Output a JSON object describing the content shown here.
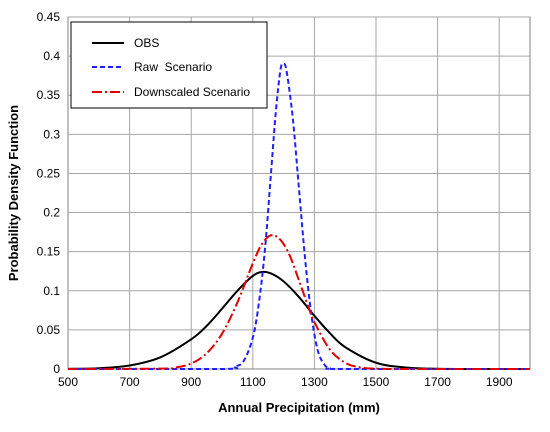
{
  "chart_data": {
    "type": "line",
    "xlabel": "Annual Precipitation (mm)",
    "ylabel": "Probability Density Function",
    "xlim": [
      500,
      2000
    ],
    "ylim": [
      0,
      0.45
    ],
    "x_ticks": [
      500,
      700,
      900,
      1100,
      1300,
      1500,
      1700,
      1900
    ],
    "y_ticks": [
      0,
      0.05,
      0.1,
      0.15,
      0.2,
      0.25,
      0.3,
      0.35,
      0.4,
      0.45
    ],
    "x_tick_labels": [
      "500",
      "700",
      "900",
      "1100",
      "1300",
      "1500",
      "1700",
      "1900"
    ],
    "y_tick_labels": [
      "0",
      "0.05",
      "0.1",
      "0.15",
      "0.2",
      "0.25",
      "0.3",
      "0.35",
      "0.4",
      "0.45"
    ],
    "grid": true,
    "legend_position": "top-left",
    "series": [
      {
        "name": "OBS",
        "color": "#000000",
        "dash": "solid",
        "x": [
          500,
          600,
          700,
          800,
          900,
          950,
          1000,
          1050,
          1100,
          1130,
          1160,
          1200,
          1250,
          1300,
          1350,
          1400,
          1500,
          1600,
          1700,
          1800,
          1900,
          2000
        ],
        "y": [
          0.0002,
          0.001,
          0.0045,
          0.015,
          0.038,
          0.055,
          0.077,
          0.1,
          0.119,
          0.124,
          0.122,
          0.112,
          0.092,
          0.068,
          0.046,
          0.028,
          0.008,
          0.0018,
          0.0003,
          0.0,
          0.0,
          0.0
        ]
      },
      {
        "name": "Raw  Scenario",
        "color": "#1f1fff",
        "dash": "dashed",
        "x": [
          500,
          1000,
          1040,
          1070,
          1100,
          1120,
          1140,
          1160,
          1175,
          1190,
          1200,
          1210,
          1230,
          1250,
          1270,
          1290,
          1310,
          1330,
          1350,
          1400,
          2000
        ],
        "y": [
          0.0,
          0.0,
          0.003,
          0.01,
          0.04,
          0.085,
          0.155,
          0.255,
          0.33,
          0.383,
          0.39,
          0.38,
          0.32,
          0.23,
          0.14,
          0.07,
          0.025,
          0.007,
          0.001,
          0.0,
          0.0
        ]
      },
      {
        "name": "Downscaled Scenario",
        "color": "#e00000",
        "dash": "dashdot",
        "x": [
          500,
          800,
          850,
          900,
          950,
          1000,
          1050,
          1100,
          1130,
          1160,
          1190,
          1220,
          1250,
          1280,
          1300,
          1350,
          1400,
          1450,
          1500,
          1600,
          2000
        ],
        "y": [
          0.0,
          0.0005,
          0.002,
          0.007,
          0.02,
          0.045,
          0.085,
          0.135,
          0.16,
          0.171,
          0.165,
          0.145,
          0.113,
          0.08,
          0.06,
          0.025,
          0.008,
          0.002,
          0.0005,
          0.0,
          0.0
        ]
      }
    ]
  }
}
